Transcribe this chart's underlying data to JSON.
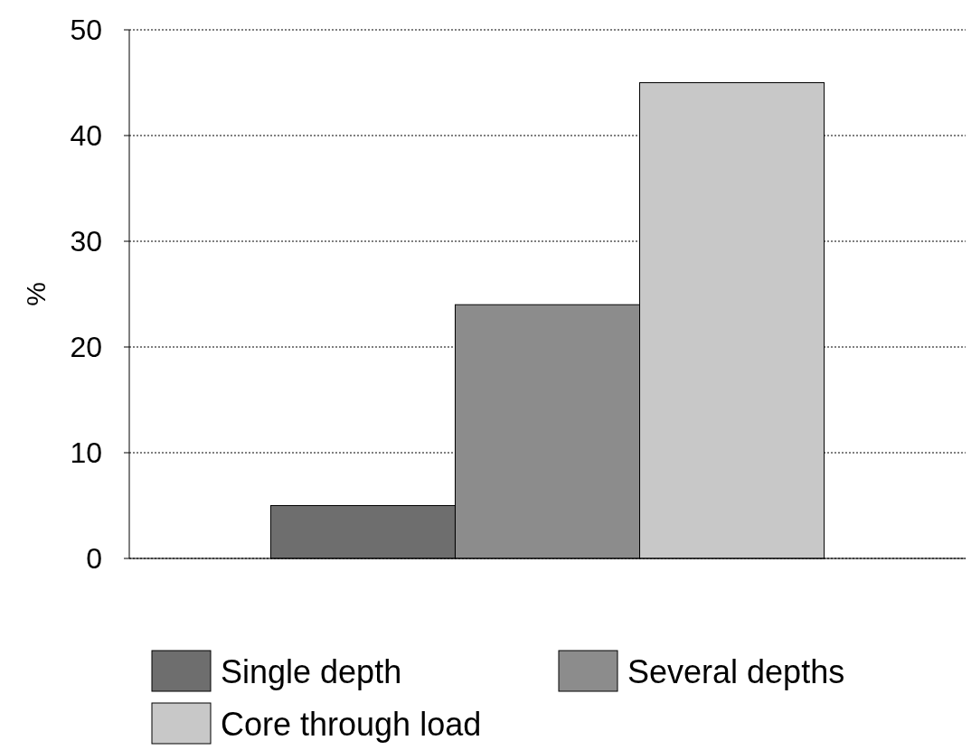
{
  "chart_data": {
    "type": "bar",
    "ylabel": "%",
    "categories": [
      null
    ],
    "series": [
      {
        "name": "Single depth",
        "color": "#6e6e6e",
        "values": [
          5
        ]
      },
      {
        "name": "Several depths",
        "color": "#8c8c8c",
        "values": [
          24
        ]
      },
      {
        "name": "Core through load",
        "color": "#c8c8c8",
        "values": [
          45
        ]
      }
    ],
    "ylim": [
      0,
      50
    ],
    "yticks": [
      0,
      10,
      20,
      30,
      40,
      50
    ],
    "grid": "y",
    "legend": "bottom"
  }
}
